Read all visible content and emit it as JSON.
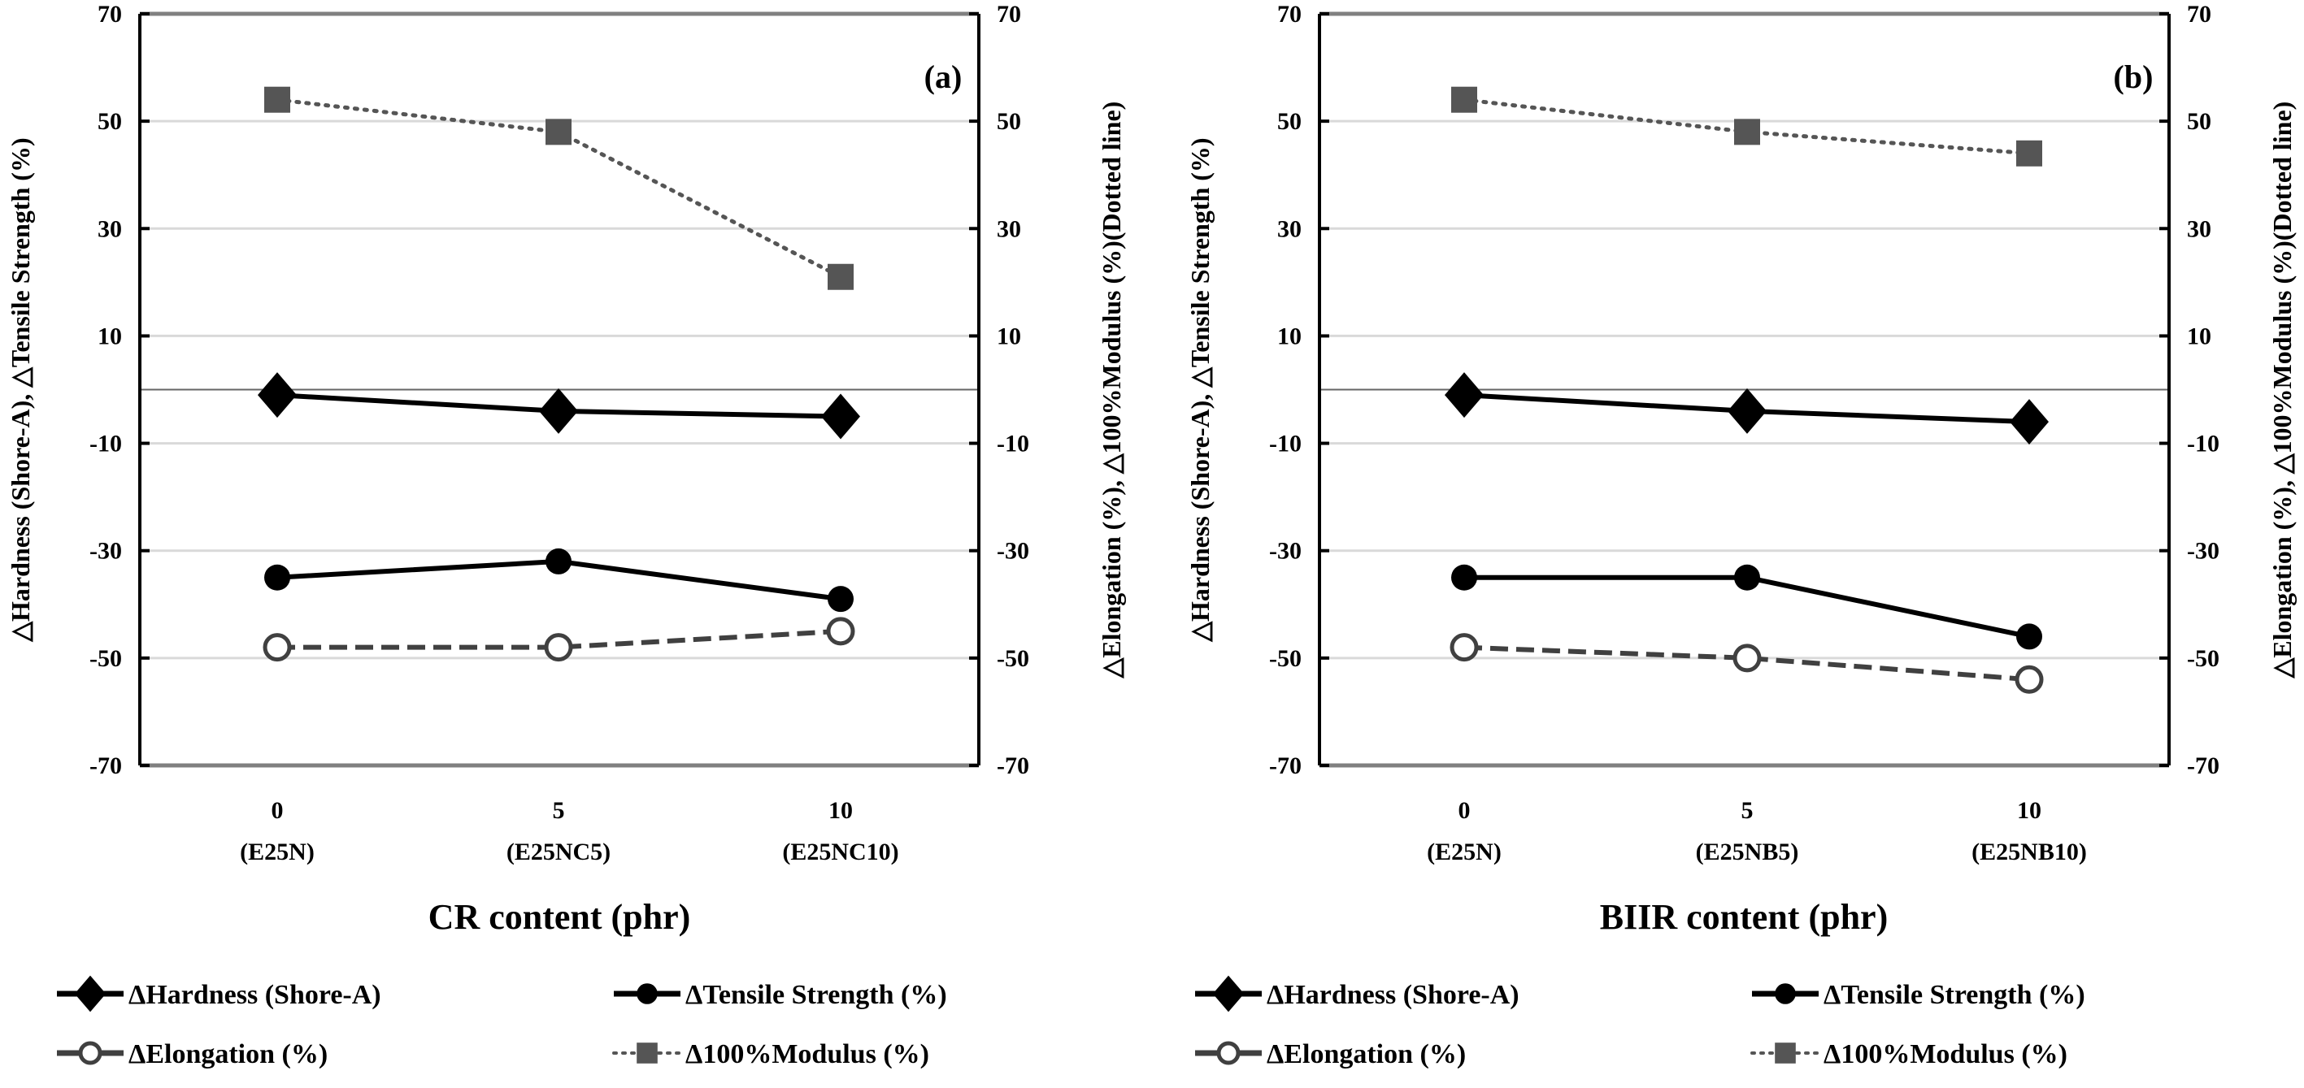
{
  "chart_data": [
    {
      "type": "line",
      "panel_label": "(a)",
      "categories": [
        "0",
        "5",
        "10"
      ],
      "category_sublabels": [
        "(E25N)",
        "(E25NC5)",
        "(E25NC10)"
      ],
      "xlabel": "CR content (phr)",
      "ylabel_left": "△Hardness (Shore-A), △Tensile Strength (%)",
      "ylabel_right": "△Elongation (%), △100%Modulus (%)(Dotted line)",
      "ylim": [
        -70,
        70
      ],
      "yticks": [
        70,
        50,
        30,
        10,
        -10,
        -30,
        -50,
        -70
      ],
      "zero_line": true,
      "grid": true,
      "series": [
        {
          "name": "ΔHardness (Shore-A)",
          "marker": "diamond",
          "line": "solid",
          "color": "#000000",
          "values": [
            -1,
            -4,
            -5
          ]
        },
        {
          "name": "ΔTensile Strength (%)",
          "marker": "circle-filled",
          "line": "solid",
          "color": "#000000",
          "values": [
            -35,
            -32,
            -39
          ]
        },
        {
          "name": "ΔElongation (%)",
          "marker": "circle-open",
          "line": "dashed",
          "color": "#404040",
          "values": [
            -48,
            -48,
            -45
          ]
        },
        {
          "name": "Δ100%Modulus (%)",
          "marker": "square",
          "line": "dotted",
          "color": "#555555",
          "values": [
            54,
            48,
            21
          ]
        }
      ],
      "legend_position": "bottom"
    },
    {
      "type": "line",
      "panel_label": "(b)",
      "categories": [
        "0",
        "5",
        "10"
      ],
      "category_sublabels": [
        "(E25N)",
        "(E25NB5)",
        "(E25NB10)"
      ],
      "xlabel": "BIIR content (phr)",
      "ylabel_left": "△Hardness (Shore-A), △Tensile Strength (%)",
      "ylabel_right": "△Elongation (%), △100%Modulus (%)(Dotted line)",
      "ylim": [
        -70,
        70
      ],
      "yticks": [
        70,
        50,
        30,
        10,
        -10,
        -30,
        -50,
        -70
      ],
      "zero_line": true,
      "grid": true,
      "series": [
        {
          "name": "ΔHardness (Shore-A)",
          "marker": "diamond",
          "line": "solid",
          "color": "#000000",
          "values": [
            -1,
            -4,
            -6
          ]
        },
        {
          "name": "ΔTensile Strength (%)",
          "marker": "circle-filled",
          "line": "solid",
          "color": "#000000",
          "values": [
            -35,
            -35,
            -46
          ]
        },
        {
          "name": "ΔElongation (%)",
          "marker": "circle-open",
          "line": "dashed",
          "color": "#404040",
          "values": [
            -48,
            -50,
            -54
          ]
        },
        {
          "name": "Δ100%Modulus (%)",
          "marker": "square",
          "line": "dotted",
          "color": "#555555",
          "values": [
            54,
            48,
            44
          ]
        }
      ],
      "legend_position": "bottom"
    }
  ]
}
